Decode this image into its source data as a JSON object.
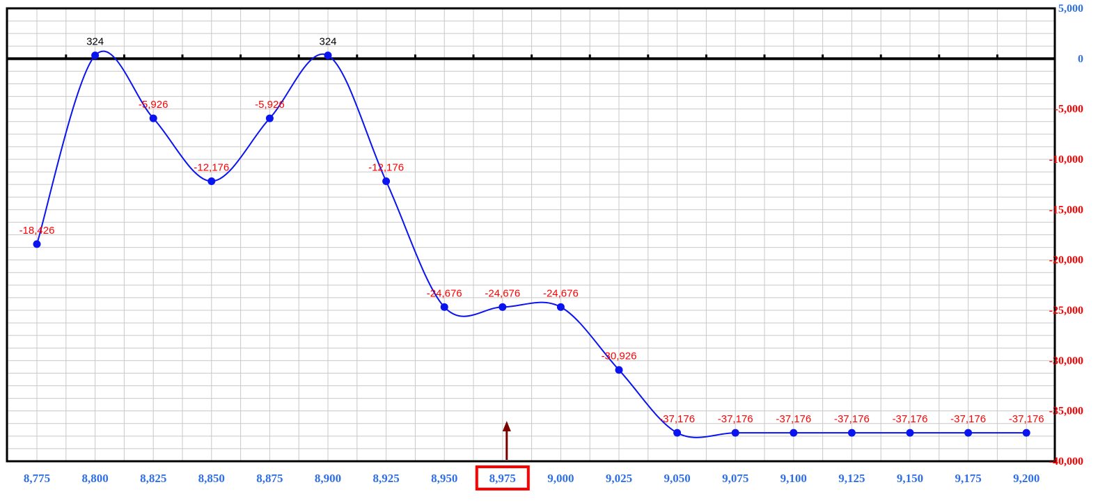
{
  "chart_data": {
    "type": "line",
    "title": "",
    "xlabel": "",
    "ylabel": "",
    "x": [
      8775,
      8800,
      8825,
      8850,
      8875,
      8900,
      8925,
      8950,
      8975,
      9000,
      9025,
      9050,
      9075,
      9100,
      9125,
      9150,
      9175,
      9200
    ],
    "x_tick_labels": [
      "8,775",
      "8,800",
      "8,825",
      "8,850",
      "8,875",
      "8,900",
      "8,925",
      "8,950",
      "8,975",
      "9,000",
      "9,025",
      "9,050",
      "9,075",
      "9,100",
      "9,125",
      "9,150",
      "9,175",
      "9,200"
    ],
    "series": [
      {
        "values": [
          -18426,
          324,
          -5926,
          -12176,
          -5926,
          324,
          -12176,
          -24676,
          -24676,
          -24676,
          -30926,
          -37176,
          -37176,
          -37176,
          -37176,
          -37176,
          -37176,
          -37176
        ],
        "labels": [
          "-18,426",
          "324",
          "-5,926",
          "-12,176",
          "-5,926",
          "324",
          "-12,176",
          "-24,676",
          "-24,676",
          "-24,676",
          "-30,926",
          "-37,176",
          "-37,176",
          "-37,176",
          "-37,176",
          "-37,176",
          "-37,176",
          "-37,176"
        ]
      }
    ],
    "ylim": [
      -40000,
      5000
    ],
    "y_ticks": [
      5000,
      0,
      -5000,
      -10000,
      -15000,
      -20000,
      -25000,
      -30000,
      -35000,
      -40000
    ],
    "y_tick_labels": [
      "5,000",
      "0",
      "-5,000",
      "-10,000",
      "-15,000",
      "-20,000",
      "-25,000",
      "-30,000",
      "-35,000",
      "-40,000"
    ],
    "y_axis_side": "right",
    "grid": true,
    "highlighted_x": 8975,
    "colors": {
      "line": "#0a14f0",
      "marker": "#0a14f0",
      "label_negative": "#ff0000",
      "label_positive": "#000000",
      "tick_x": "#2f6fe6",
      "tick_y_negative": "#ff0000",
      "tick_y_positive": "#2f6fe6",
      "zero_line": "#000000",
      "highlight_box": "#ff0000",
      "arrow": "#7a0000",
      "grid": "#c8c8c8"
    }
  }
}
